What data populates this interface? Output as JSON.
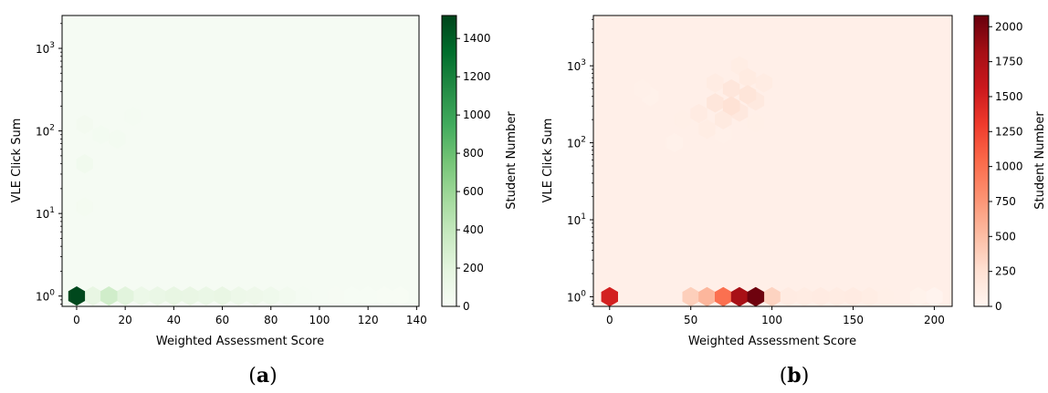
{
  "panel_labels": [
    {
      "open": "(",
      "letter": "a",
      "close": ")"
    },
    {
      "open": "(",
      "letter": "b",
      "close": ")"
    }
  ],
  "chart_data": [
    {
      "type": "heatmap",
      "subtype": "hexbin",
      "xlabel": "Weighted Assessment Score",
      "ylabel": "VLE Click Sum",
      "yscale": "log",
      "xlim": [
        -6,
        141
      ],
      "ylim": [
        0.75,
        2500
      ],
      "xticks": [
        0,
        20,
        40,
        60,
        80,
        100,
        120,
        140
      ],
      "yticks": [
        {
          "value": 1,
          "base": "10",
          "exp": "0"
        },
        {
          "value": 10,
          "base": "10",
          "exp": "1"
        },
        {
          "value": 100,
          "base": "10",
          "exp": "2"
        },
        {
          "value": 1000,
          "base": "10",
          "exp": "3"
        }
      ],
      "colorbar": {
        "label": "Student Number",
        "range": [
          0,
          1520
        ],
        "ticks": [
          0,
          200,
          400,
          600,
          800,
          1000,
          1200,
          1400
        ],
        "colors": [
          "#f7fcf5",
          "#e5f5e0",
          "#c7e9c0",
          "#a1d99b",
          "#74c476",
          "#41ab5d",
          "#238b45",
          "#006d2c",
          "#00441b"
        ]
      },
      "points": [
        {
          "x": 0,
          "y": 1,
          "count": 1500
        },
        {
          "x": 6.7,
          "y": 1,
          "count": 160
        },
        {
          "x": 13.3,
          "y": 1,
          "count": 320
        },
        {
          "x": 20,
          "y": 1,
          "count": 210
        },
        {
          "x": 26.7,
          "y": 1,
          "count": 120
        },
        {
          "x": 33.3,
          "y": 1,
          "count": 140
        },
        {
          "x": 40,
          "y": 1,
          "count": 160
        },
        {
          "x": 46.7,
          "y": 1,
          "count": 150
        },
        {
          "x": 53.3,
          "y": 1,
          "count": 140
        },
        {
          "x": 60,
          "y": 1,
          "count": 150
        },
        {
          "x": 66.7,
          "y": 1,
          "count": 110
        },
        {
          "x": 73.3,
          "y": 1,
          "count": 100
        },
        {
          "x": 80,
          "y": 1,
          "count": 80
        },
        {
          "x": 86.7,
          "y": 1,
          "count": 50
        },
        {
          "x": 93.3,
          "y": 1,
          "count": 30
        },
        {
          "x": 100,
          "y": 1,
          "count": 20
        },
        {
          "x": 106.7,
          "y": 1,
          "count": 15
        },
        {
          "x": 113.3,
          "y": 1,
          "count": 10
        },
        {
          "x": 120,
          "y": 1,
          "count": 8
        },
        {
          "x": 126.7,
          "y": 1,
          "count": 5
        },
        {
          "x": 133.3,
          "y": 1,
          "count": 5
        },
        {
          "x": 3.3,
          "y": 40,
          "count": 60
        },
        {
          "x": 3.3,
          "y": 120,
          "count": 45
        },
        {
          "x": 10,
          "y": 90,
          "count": 40
        },
        {
          "x": 16.7,
          "y": 80,
          "count": 38
        },
        {
          "x": 3.3,
          "y": 12,
          "count": 35
        },
        {
          "x": 23.3,
          "y": 150,
          "count": 30
        }
      ],
      "background_count": 22
    },
    {
      "type": "heatmap",
      "subtype": "hexbin",
      "xlabel": "Weighted Assessment Score",
      "ylabel": "VLE Click Sum",
      "yscale": "log",
      "xlim": [
        -10,
        211
      ],
      "ylim": [
        0.75,
        4500
      ],
      "xticks": [
        0,
        50,
        100,
        150,
        200
      ],
      "yticks": [
        {
          "value": 1,
          "base": "10",
          "exp": "0"
        },
        {
          "value": 10,
          "base": "10",
          "exp": "1"
        },
        {
          "value": 100,
          "base": "10",
          "exp": "2"
        },
        {
          "value": 1000,
          "base": "10",
          "exp": "3"
        }
      ],
      "colorbar": {
        "label": "Student Number",
        "range": [
          0,
          2080
        ],
        "ticks": [
          0,
          250,
          500,
          750,
          1000,
          1250,
          1500,
          1750,
          2000
        ],
        "colors": [
          "#fff5f0",
          "#fee0d2",
          "#fcbba1",
          "#fc9272",
          "#fb6a4a",
          "#ef3b2c",
          "#cb181d",
          "#a50f15",
          "#67000d"
        ]
      },
      "points": [
        {
          "x": 0,
          "y": 1,
          "count": 1500
        },
        {
          "x": 40,
          "y": 1,
          "count": 70
        },
        {
          "x": 50,
          "y": 1,
          "count": 380
        },
        {
          "x": 60,
          "y": 1,
          "count": 550
        },
        {
          "x": 70,
          "y": 1,
          "count": 1000
        },
        {
          "x": 80,
          "y": 1,
          "count": 1800
        },
        {
          "x": 90,
          "y": 1,
          "count": 2050
        },
        {
          "x": 100,
          "y": 1,
          "count": 350
        },
        {
          "x": 110,
          "y": 1,
          "count": 120
        },
        {
          "x": 120,
          "y": 1,
          "count": 110
        },
        {
          "x": 130,
          "y": 1,
          "count": 120
        },
        {
          "x": 140,
          "y": 1,
          "count": 110
        },
        {
          "x": 150,
          "y": 1,
          "count": 120
        },
        {
          "x": 160,
          "y": 1,
          "count": 100
        },
        {
          "x": 170,
          "y": 1,
          "count": 80
        },
        {
          "x": 180,
          "y": 1,
          "count": 70
        },
        {
          "x": 190,
          "y": 1,
          "count": 40
        },
        {
          "x": 200,
          "y": 1,
          "count": 20
        },
        {
          "x": 75,
          "y": 300,
          "count": 230
        },
        {
          "x": 85,
          "y": 420,
          "count": 200
        },
        {
          "x": 75,
          "y": 500,
          "count": 180
        },
        {
          "x": 65,
          "y": 330,
          "count": 180
        },
        {
          "x": 80,
          "y": 250,
          "count": 160
        },
        {
          "x": 90,
          "y": 350,
          "count": 150
        },
        {
          "x": 70,
          "y": 200,
          "count": 140
        },
        {
          "x": 85,
          "y": 700,
          "count": 130
        },
        {
          "x": 55,
          "y": 240,
          "count": 120
        },
        {
          "x": 95,
          "y": 600,
          "count": 110
        },
        {
          "x": 65,
          "y": 600,
          "count": 110
        },
        {
          "x": 80,
          "y": 1000,
          "count": 100
        },
        {
          "x": 60,
          "y": 150,
          "count": 100
        },
        {
          "x": 45,
          "y": 200,
          "count": 80
        },
        {
          "x": 90,
          "y": 180,
          "count": 80
        },
        {
          "x": 100,
          "y": 400,
          "count": 70
        },
        {
          "x": 50,
          "y": 400,
          "count": 70
        },
        {
          "x": 20,
          "y": 500,
          "count": 60
        },
        {
          "x": 25,
          "y": 400,
          "count": 50
        },
        {
          "x": 70,
          "y": 130,
          "count": 60
        },
        {
          "x": 40,
          "y": 100,
          "count": 50
        }
      ],
      "background_count": 70
    }
  ]
}
